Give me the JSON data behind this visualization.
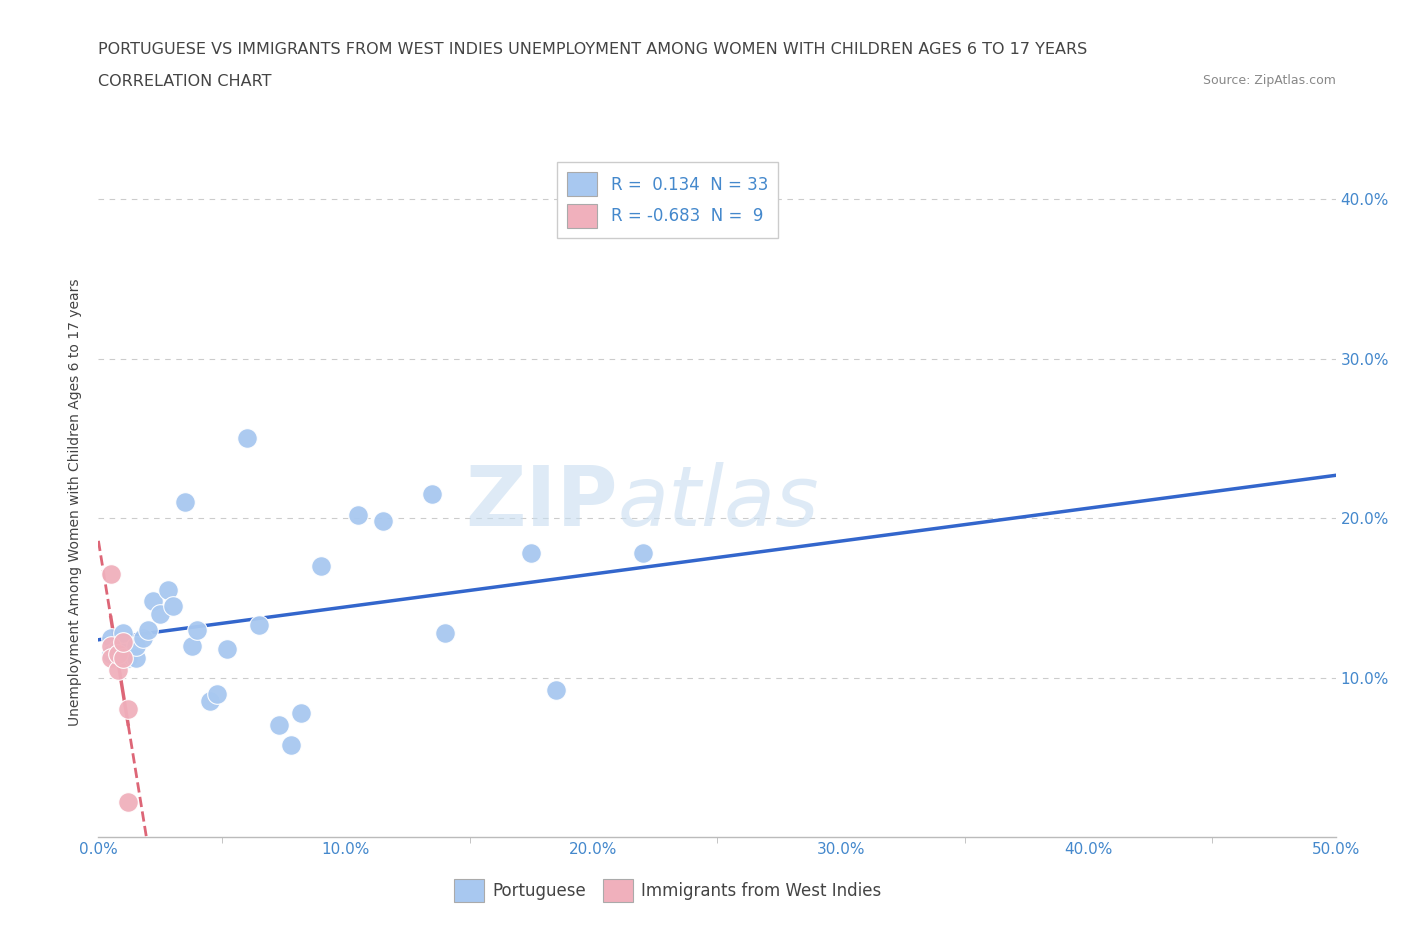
{
  "title_line1": "PORTUGUESE VS IMMIGRANTS FROM WEST INDIES UNEMPLOYMENT AMONG WOMEN WITH CHILDREN AGES 6 TO 17 YEARS",
  "title_line2": "CORRELATION CHART",
  "source": "Source: ZipAtlas.com",
  "ylabel": "Unemployment Among Women with Children Ages 6 to 17 years",
  "xlim": [
    0.0,
    0.5
  ],
  "ylim": [
    0.0,
    0.42
  ],
  "xtick_labels": [
    "0.0%",
    "",
    "",
    "",
    "",
    "10.0%",
    "",
    "",
    "",
    "",
    "20.0%",
    "",
    "",
    "",
    "",
    "30.0%",
    "",
    "",
    "",
    "",
    "40.0%",
    "",
    "",
    "",
    "",
    "50.0%"
  ],
  "xtick_vals": [
    0.0,
    0.02,
    0.04,
    0.06,
    0.08,
    0.1,
    0.12,
    0.14,
    0.16,
    0.18,
    0.2,
    0.22,
    0.24,
    0.26,
    0.28,
    0.3,
    0.32,
    0.34,
    0.36,
    0.38,
    0.4,
    0.42,
    0.44,
    0.46,
    0.48,
    0.5
  ],
  "xtick_major_labels": [
    "0.0%",
    "10.0%",
    "20.0%",
    "30.0%",
    "40.0%",
    "50.0%"
  ],
  "xtick_major_vals": [
    0.0,
    0.1,
    0.2,
    0.3,
    0.4,
    0.5
  ],
  "ytick_labels": [
    "10.0%",
    "20.0%",
    "30.0%",
    "40.0%"
  ],
  "ytick_vals": [
    0.1,
    0.2,
    0.3,
    0.4
  ],
  "portuguese_color": "#a8c8f0",
  "west_indies_color": "#f0b0bc",
  "portuguese_R": 0.134,
  "portuguese_N": 33,
  "west_indies_R": -0.683,
  "west_indies_N": 9,
  "watermark_zip": "ZIP",
  "watermark_atlas": "atlas",
  "background_color": "#ffffff",
  "grid_color": "#cccccc",
  "portuguese_scatter": [
    [
      0.005,
      0.125
    ],
    [
      0.005,
      0.115
    ],
    [
      0.008,
      0.118
    ],
    [
      0.01,
      0.12
    ],
    [
      0.01,
      0.128
    ],
    [
      0.012,
      0.112
    ],
    [
      0.015,
      0.112
    ],
    [
      0.015,
      0.12
    ],
    [
      0.018,
      0.125
    ],
    [
      0.02,
      0.13
    ],
    [
      0.022,
      0.148
    ],
    [
      0.025,
      0.14
    ],
    [
      0.028,
      0.155
    ],
    [
      0.03,
      0.145
    ],
    [
      0.035,
      0.21
    ],
    [
      0.038,
      0.12
    ],
    [
      0.04,
      0.13
    ],
    [
      0.045,
      0.085
    ],
    [
      0.048,
      0.09
    ],
    [
      0.052,
      0.118
    ],
    [
      0.06,
      0.25
    ],
    [
      0.065,
      0.133
    ],
    [
      0.073,
      0.07
    ],
    [
      0.078,
      0.058
    ],
    [
      0.082,
      0.078
    ],
    [
      0.09,
      0.17
    ],
    [
      0.105,
      0.202
    ],
    [
      0.115,
      0.198
    ],
    [
      0.135,
      0.215
    ],
    [
      0.14,
      0.128
    ],
    [
      0.175,
      0.178
    ],
    [
      0.185,
      0.092
    ],
    [
      0.22,
      0.178
    ]
  ],
  "west_indies_scatter": [
    [
      0.005,
      0.165
    ],
    [
      0.005,
      0.12
    ],
    [
      0.005,
      0.112
    ],
    [
      0.008,
      0.105
    ],
    [
      0.008,
      0.115
    ],
    [
      0.01,
      0.112
    ],
    [
      0.01,
      0.122
    ],
    [
      0.012,
      0.08
    ],
    [
      0.012,
      0.022
    ]
  ],
  "portuguese_line_color": "#3366cc",
  "west_indies_line_color": "#dd6677",
  "title_fontsize": 11.5,
  "subtitle_fontsize": 11.5,
  "axis_label_fontsize": 10,
  "tick_fontsize": 11,
  "legend_fontsize": 12
}
